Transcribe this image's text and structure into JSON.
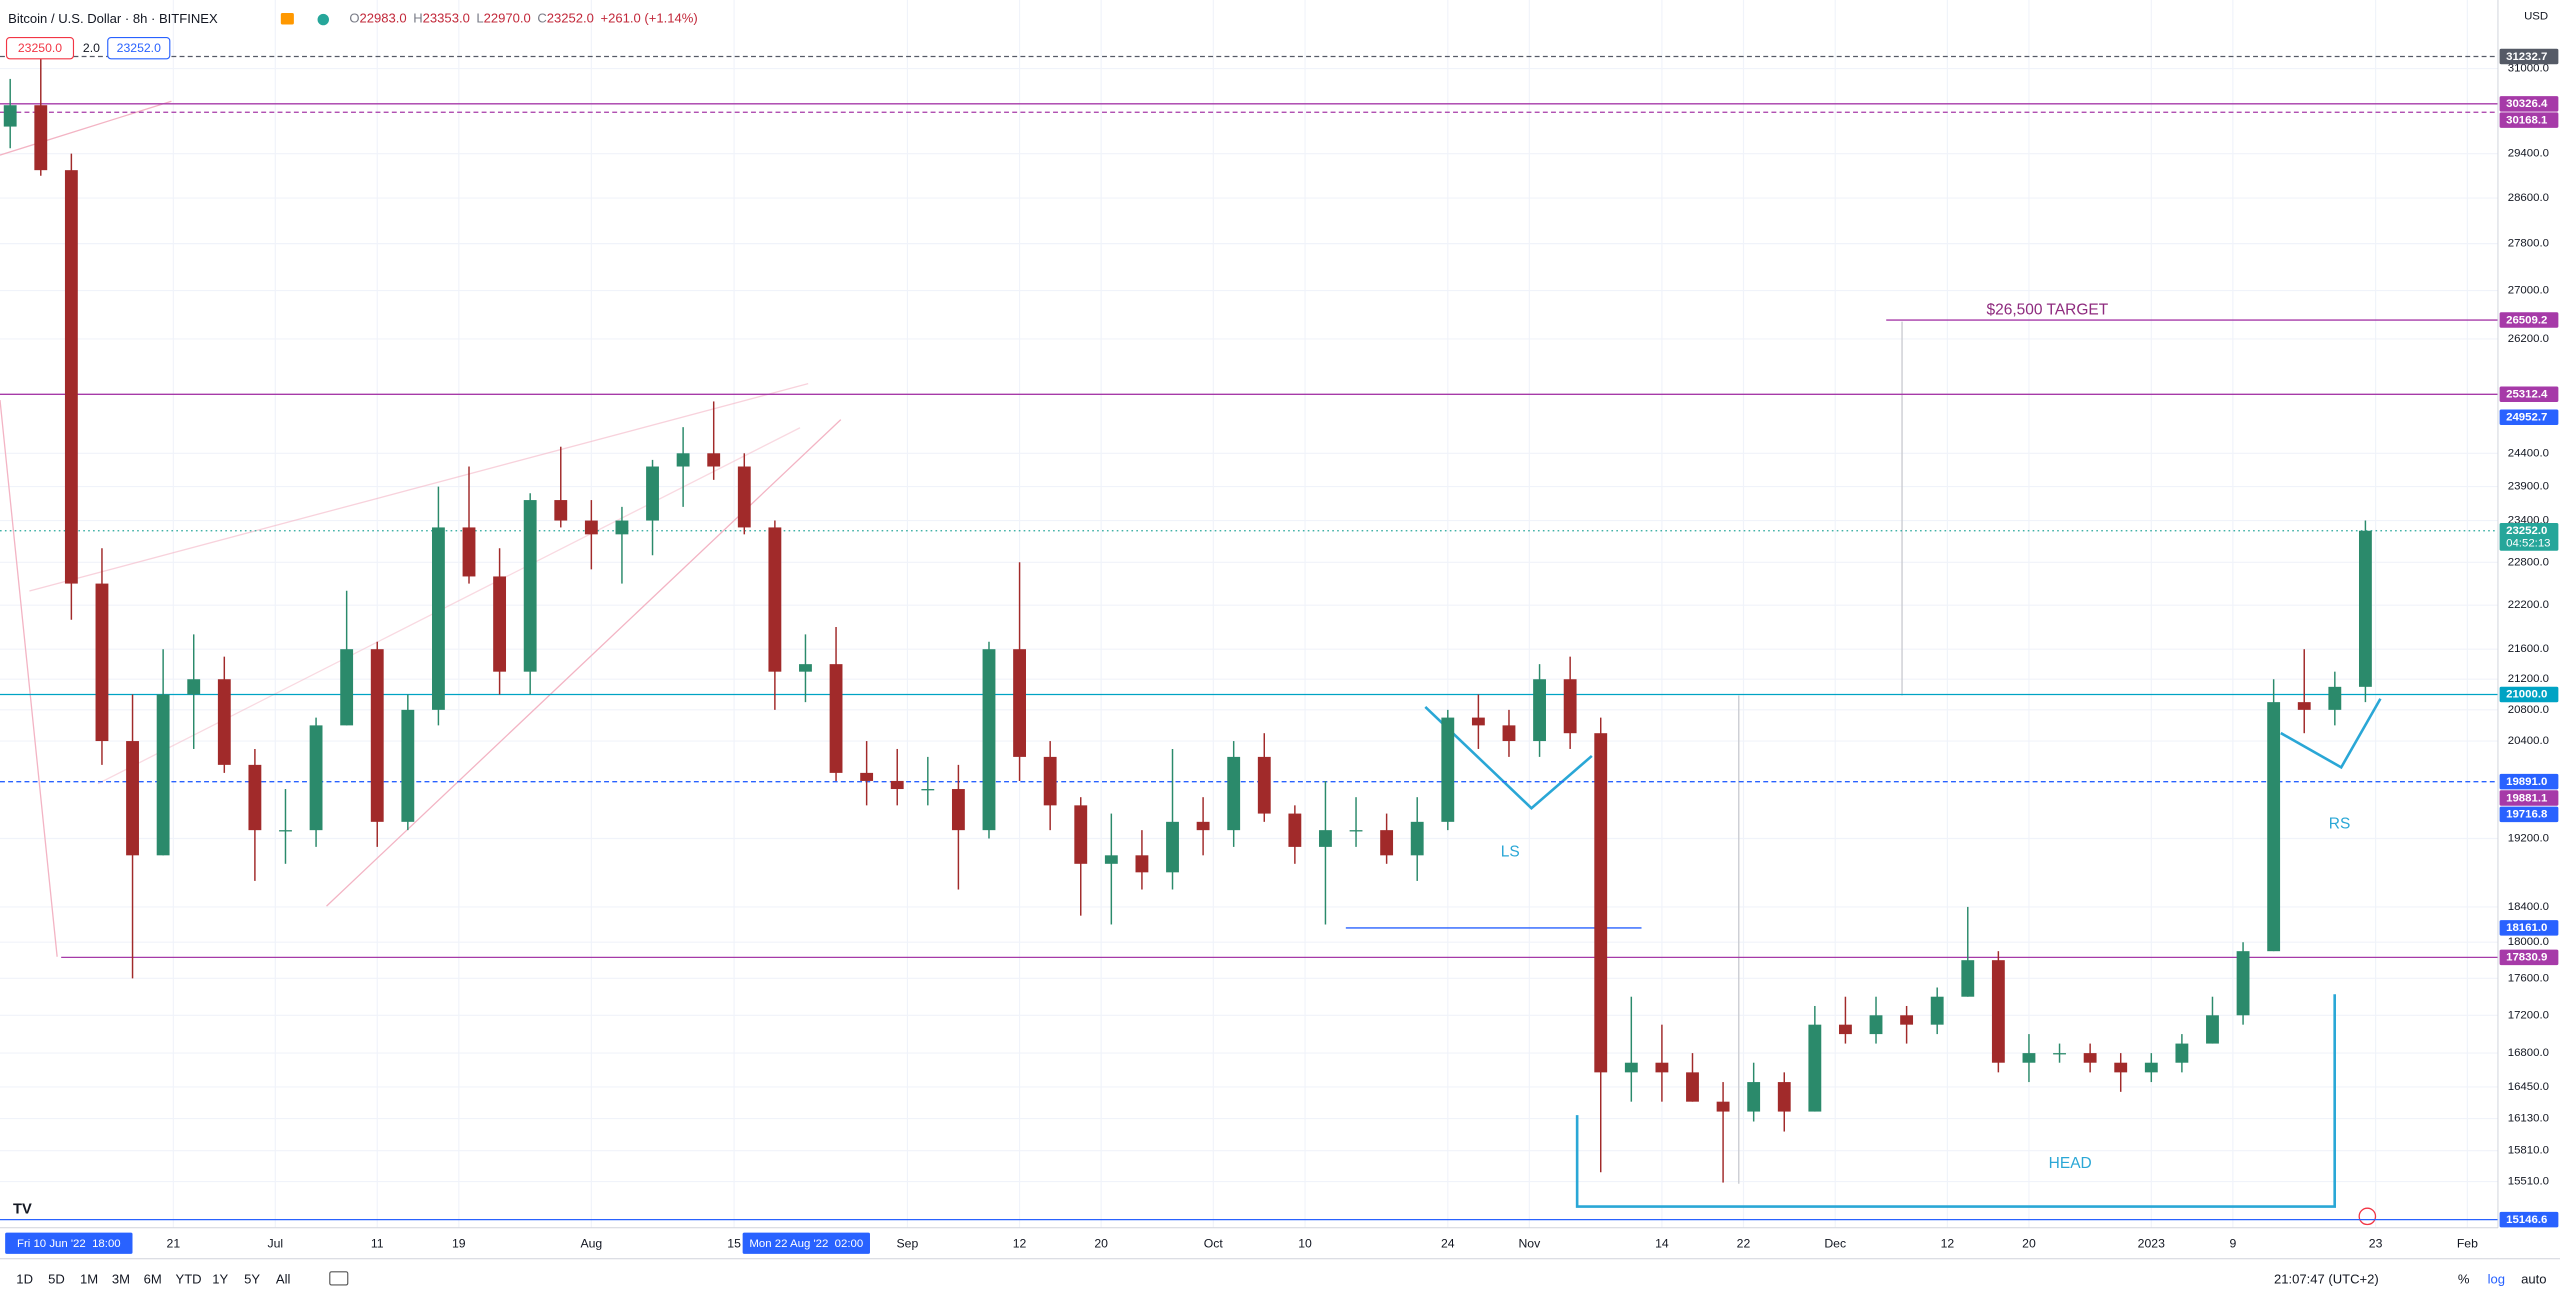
{
  "header": {
    "symbol": "Bitcoin / U.S. Dollar · 8h · BITFINEX",
    "ohlc": [
      {
        "key": "O",
        "value": "22983.0"
      },
      {
        "key": "H",
        "value": "23353.0"
      },
      {
        "key": "L",
        "value": "22970.0"
      },
      {
        "key": "C",
        "value": "23252.0"
      }
    ],
    "change": "+261.0 (+1.14%)",
    "sell": "23250.0",
    "spread": "2.0",
    "buy": "23252.0",
    "currency": "USD"
  },
  "toolbar": {
    "ranges": [
      "1D",
      "5D",
      "1M",
      "3M",
      "6M",
      "YTD",
      "1Y",
      "5Y",
      "All"
    ],
    "clock": "21:07:47 (UTC+2)",
    "percent": "%",
    "log": "log",
    "auto": "auto"
  },
  "chart_data": {
    "type": "candlestick",
    "log_scale": true,
    "grid": true,
    "up_color": "#2b8a6b",
    "down_color": "#a12a2a",
    "x": [
      "2022-06-05",
      "2022-06-08",
      "2022-06-11",
      "2022-06-14",
      "2022-06-17",
      "2022-06-20",
      "2022-06-23",
      "2022-06-26",
      "2022-06-29",
      "2022-07-02",
      "2022-07-05",
      "2022-07-08",
      "2022-07-11",
      "2022-07-14",
      "2022-07-17",
      "2022-07-20",
      "2022-07-23",
      "2022-07-26",
      "2022-07-29",
      "2022-08-01",
      "2022-08-04",
      "2022-08-07",
      "2022-08-10",
      "2022-08-13",
      "2022-08-16",
      "2022-08-19",
      "2022-08-22",
      "2022-08-25",
      "2022-08-28",
      "2022-08-31",
      "2022-09-03",
      "2022-09-06",
      "2022-09-09",
      "2022-09-12",
      "2022-09-15",
      "2022-09-18",
      "2022-09-21",
      "2022-09-24",
      "2022-09-27",
      "2022-09-30",
      "2022-10-03",
      "2022-10-06",
      "2022-10-09",
      "2022-10-12",
      "2022-10-15",
      "2022-10-18",
      "2022-10-21",
      "2022-10-24",
      "2022-10-27",
      "2022-10-30",
      "2022-11-02",
      "2022-11-05",
      "2022-11-08",
      "2022-11-11",
      "2022-11-14",
      "2022-11-17",
      "2022-11-20",
      "2022-11-23",
      "2022-11-26",
      "2022-11-29",
      "2022-12-02",
      "2022-12-05",
      "2022-12-08",
      "2022-12-11",
      "2022-12-14",
      "2022-12-17",
      "2022-12-20",
      "2022-12-23",
      "2022-12-26",
      "2022-12-29",
      "2023-01-01",
      "2023-01-04",
      "2023-01-07",
      "2023-01-10",
      "2023-01-13",
      "2023-01-16",
      "2023-01-19",
      "2023-01-22"
    ],
    "open": [
      29900,
      30300,
      29100,
      22500,
      20400,
      19000,
      21000,
      21200,
      20100,
      19300,
      19300,
      20600,
      21600,
      19400,
      20800,
      23300,
      22600,
      21300,
      23700,
      23400,
      23200,
      23400,
      24200,
      24400,
      24200,
      23300,
      21300,
      21400,
      20000,
      19900,
      19800,
      19800,
      19300,
      21600,
      20200,
      19600,
      18900,
      19000,
      18800,
      19400,
      19300,
      20200,
      19500,
      19100,
      19300,
      19300,
      19000,
      19400,
      20700,
      20600,
      20400,
      21200,
      20500,
      16600,
      16700,
      16600,
      16300,
      16200,
      16500,
      16200,
      17100,
      17000,
      17200,
      17100,
      17400,
      17800,
      16700,
      16800,
      16800,
      16700,
      16600,
      16700,
      16900,
      17200,
      17900,
      20900,
      20800,
      21100
    ],
    "high": [
      30800,
      31600,
      29400,
      23000,
      21000,
      21600,
      21800,
      21500,
      20300,
      19800,
      20700,
      22400,
      21700,
      21000,
      23900,
      24200,
      23000,
      23800,
      24500,
      23700,
      23600,
      24300,
      24800,
      25200,
      24400,
      23400,
      21800,
      21900,
      20400,
      20300,
      20200,
      20100,
      21700,
      22800,
      20400,
      19700,
      19500,
      19300,
      20300,
      19700,
      20400,
      20500,
      19600,
      19900,
      19700,
      19500,
      19700,
      20800,
      21000,
      20800,
      21400,
      21500,
      20700,
      17400,
      17100,
      16800,
      16500,
      16700,
      16600,
      17300,
      17400,
      17400,
      17300,
      17500,
      18400,
      17900,
      17000,
      16900,
      16900,
      16800,
      16800,
      17000,
      17400,
      18000,
      21200,
      21600,
      21300,
      23400
    ],
    "low": [
      29500,
      29000,
      22000,
      20100,
      17600,
      19000,
      20300,
      20000,
      18700,
      18900,
      19100,
      20600,
      19100,
      19300,
      20600,
      22500,
      21000,
      21000,
      23300,
      22700,
      22500,
      22900,
      23600,
      24000,
      23200,
      20800,
      20900,
      19900,
      19600,
      19600,
      19600,
      18600,
      19200,
      19900,
      19300,
      18300,
      18200,
      18600,
      18600,
      19000,
      19100,
      19400,
      18900,
      18200,
      19100,
      18900,
      18700,
      19300,
      20300,
      20200,
      20200,
      20300,
      15600,
      16300,
      16300,
      16300,
      15500,
      16100,
      16000,
      16200,
      16900,
      16900,
      16900,
      17000,
      17400,
      16600,
      16500,
      16700,
      16600,
      16400,
      16500,
      16600,
      16900,
      17100,
      17900,
      20500,
      20600,
      20900
    ],
    "close": [
      30300,
      29100,
      22500,
      20400,
      19000,
      21000,
      21200,
      20100,
      19300,
      19300,
      20600,
      21600,
      19400,
      20800,
      23300,
      22600,
      21300,
      23700,
      23400,
      23200,
      23400,
      24200,
      24400,
      24200,
      23300,
      21300,
      21400,
      20000,
      19900,
      19800,
      19800,
      19300,
      21600,
      20200,
      19600,
      18900,
      19000,
      18800,
      19400,
      19300,
      20200,
      19500,
      19100,
      19300,
      19300,
      19000,
      19400,
      20700,
      20600,
      20400,
      21200,
      20500,
      16600,
      16700,
      16600,
      16300,
      16200,
      16500,
      16200,
      17100,
      17000,
      17200,
      17100,
      17400,
      17800,
      16700,
      16800,
      16800,
      16700,
      16600,
      16700,
      16900,
      17200,
      17900,
      20900,
      20800,
      21100,
      23252
    ],
    "xlim": [
      "2022-06-04",
      "2023-02-04"
    ],
    "ylim": [
      15070,
      32350
    ],
    "yticks": [
      {
        "value": 31000,
        "label": "31000.0"
      },
      {
        "value": 29400,
        "label": "29400.0"
      },
      {
        "value": 28600,
        "label": "28600.0"
      },
      {
        "value": 27800,
        "label": "27800.0"
      },
      {
        "value": 27000,
        "label": "27000.0"
      },
      {
        "value": 26200,
        "label": "26200.0"
      },
      {
        "value": 24400,
        "label": "24400.0"
      },
      {
        "value": 23900,
        "label": "23900.0"
      },
      {
        "value": 23400,
        "label": "23400.0"
      },
      {
        "value": 22800,
        "label": "22800.0"
      },
      {
        "value": 22200,
        "label": "22200.0"
      },
      {
        "value": 21600,
        "label": "21600.0"
      },
      {
        "value": 21200,
        "label": "21200.0"
      },
      {
        "value": 20800,
        "label": "20800.0"
      },
      {
        "value": 20400,
        "label": "20400.0"
      },
      {
        "value": 19200,
        "label": "19200.0"
      },
      {
        "value": 18400,
        "label": "18400.0"
      },
      {
        "value": 18000,
        "label": "18000.0"
      },
      {
        "value": 17600,
        "label": "17600.0"
      },
      {
        "value": 17200,
        "label": "17200.0"
      },
      {
        "value": 16800,
        "label": "16800.0"
      },
      {
        "value": 16450,
        "label": "16450.0"
      },
      {
        "value": 16130,
        "label": "16130.0"
      },
      {
        "value": 15810,
        "label": "15810.0"
      },
      {
        "value": 15510,
        "label": "15510.0"
      }
    ],
    "xticks": [
      {
        "value": "2022-06-21",
        "label": "21"
      },
      {
        "value": "2022-07-01",
        "label": "Jul"
      },
      {
        "value": "2022-07-11",
        "label": "11"
      },
      {
        "value": "2022-07-19",
        "label": "19"
      },
      {
        "value": "2022-08-01",
        "label": "Aug"
      },
      {
        "value": "2022-08-15",
        "label": "15"
      },
      {
        "value": "2022-09-01",
        "label": "Sep"
      },
      {
        "value": "2022-09-12",
        "label": "12"
      },
      {
        "value": "2022-09-20",
        "label": "20"
      },
      {
        "value": "2022-10-01",
        "label": "Oct"
      },
      {
        "value": "2022-10-10",
        "label": "10"
      },
      {
        "value": "2022-10-24",
        "label": "24"
      },
      {
        "value": "2022-11-01",
        "label": "Nov"
      },
      {
        "value": "2022-11-14",
        "label": "14"
      },
      {
        "value": "2022-11-22",
        "label": "22"
      },
      {
        "value": "2022-12-01",
        "label": "Dec"
      },
      {
        "value": "2022-12-12",
        "label": "12"
      },
      {
        "value": "2022-12-20",
        "label": "20"
      },
      {
        "value": "2023-01-01",
        "label": "2023"
      },
      {
        "value": "2023-01-09",
        "label": "9"
      },
      {
        "value": "2023-01-23",
        "label": "23"
      },
      {
        "value": "2023-02-01",
        "label": "Feb"
      }
    ],
    "crosshair_labels": [
      {
        "x": "2022-06-10T18:00:00Z",
        "label": "Fri 10 Jun '22  18:00"
      },
      {
        "x": "2022-08-22T02:00:00Z",
        "label": "Mon 22 Aug '22  02:00"
      }
    ],
    "levels": [
      {
        "value": 31232.7,
        "label": "31232.7",
        "color": "#555a66",
        "style": "dashed"
      },
      {
        "value": 30326.4,
        "label": "30326.4",
        "color": "#a63aa8",
        "style": "solid"
      },
      {
        "value": 30168.1,
        "label": "30168.1",
        "color": "#a63aa8",
        "style": "dashed"
      },
      {
        "value": 26509.2,
        "label": "26509.2",
        "color": "#a63aa8",
        "style": "solid",
        "start": "2022-12-06"
      },
      {
        "value": 25312.4,
        "label": "25312.4",
        "color": "#a63aa8",
        "style": "solid"
      },
      {
        "value": 24952.7,
        "label": "24952.7",
        "color": "#2962ff",
        "style": "none"
      },
      {
        "value": 23252,
        "label": "23252.0",
        "color": "#26a69a",
        "style": "dotted",
        "countdown": "04:52:13"
      },
      {
        "value": 21000,
        "label": "21000.0",
        "color": "#00a3c4",
        "style": "solid"
      },
      {
        "value": 19891,
        "label": "19891.0",
        "color": "#2962ff",
        "style": "dashed"
      },
      {
        "value": 19881.1,
        "label": "19881.1",
        "color": "#a63aa8",
        "style": "none"
      },
      {
        "value": 19716.8,
        "label": "19716.8",
        "color": "#2962ff",
        "style": "none"
      },
      {
        "value": 18161,
        "label": "18161.0",
        "color": "#2962ff",
        "style": "solid",
        "start": "2022-10-14",
        "end": "2022-11-12"
      },
      {
        "value": 17830.9,
        "label": "17830.9",
        "color": "#a63aa8",
        "style": "solid",
        "start": "2022-06-10"
      },
      {
        "value": 15146.6,
        "label": "15146.6",
        "color": "#2962ff",
        "style": "solid"
      }
    ],
    "annotations": [
      "$26,500 TARGET",
      "LS",
      "RS",
      "HEAD"
    ]
  }
}
